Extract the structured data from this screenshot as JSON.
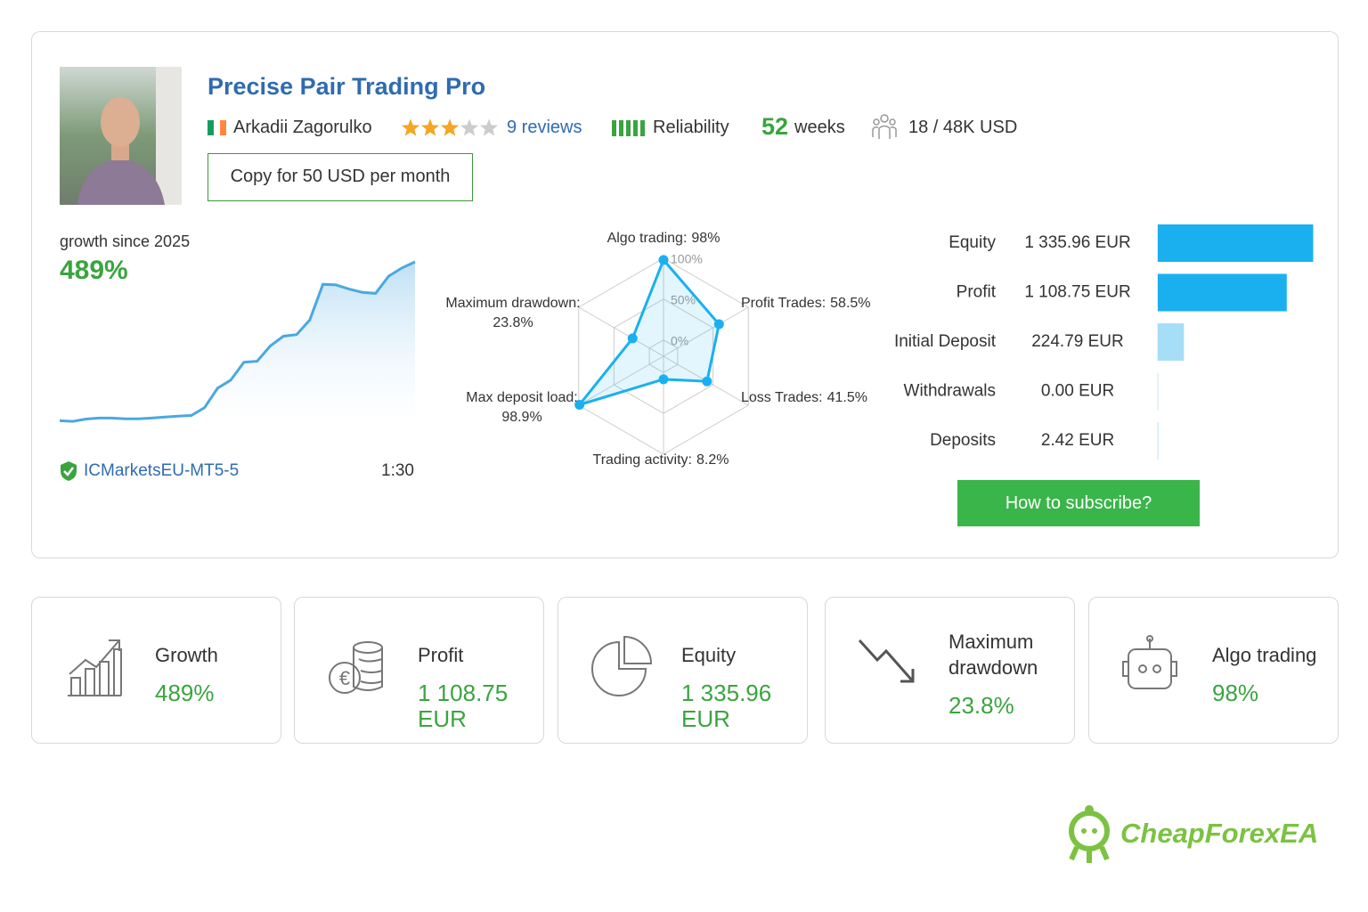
{
  "header": {
    "title": "Precise Pair Trading Pro",
    "author": "Arkadii Zagorulko",
    "rating": 3,
    "rating_max": 5,
    "reviews": "9 reviews",
    "reliability": "Reliability",
    "weeks": "52",
    "weeks_unit": "weeks",
    "subscribers": "18 / 48K USD",
    "copy_button": "Copy for 50 USD per month"
  },
  "growth": {
    "label": "growth since 2025",
    "value": "489%",
    "broker": "ICMarketsEU-MT5-5",
    "leverage": "1:30",
    "chart": {
      "type": "area",
      "color": "#4aa8e0",
      "ylim": [
        -10,
        500
      ],
      "values": [
        0,
        -2,
        5,
        8,
        8,
        6,
        6,
        8,
        11,
        14,
        16,
        40,
        100,
        125,
        180,
        183,
        230,
        260,
        265,
        310,
        420,
        418,
        405,
        395,
        392,
        445,
        470,
        489
      ]
    }
  },
  "radar": {
    "type": "radar",
    "color": "#1ab0ef",
    "categories": [
      "Algo trading:",
      "Profit Trades:",
      "Loss Trades:",
      "Trading activity:",
      "Max deposit load:",
      "Maximum drawdown:"
    ],
    "values": [
      98,
      58.5,
      41.5,
      8.2,
      98.9,
      23.8
    ],
    "value_labels": [
      "98%",
      "58.5%",
      "41.5%",
      "8.2%",
      "98.9%",
      "23.8%"
    ],
    "rlim": [
      -20,
      100
    ],
    "rticks": [
      {
        "value": 0,
        "label": "0%"
      },
      {
        "value": 50,
        "label": "50%"
      },
      {
        "value": 100,
        "label": "100%"
      }
    ]
  },
  "balance": {
    "type": "bar",
    "orientation": "horizontal",
    "categories": [
      "Equity",
      "Profit",
      "Initial Deposit",
      "Withdrawals",
      "Deposits"
    ],
    "values": [
      1335.96,
      1108.75,
      224.79,
      0,
      2.42
    ],
    "value_labels": [
      "1 335.96 EUR",
      "1 108.75 EUR",
      "224.79 EUR",
      "0.00 EUR",
      "2.42 EUR"
    ],
    "colors": [
      "#1ab0ef",
      "#1ab0ef",
      "#a6def8",
      "#a6def8",
      "#a6def8"
    ],
    "xlim": [
      0,
      1340
    ]
  },
  "subscribe_button": "How to subscribe?",
  "stats": [
    {
      "label": "Growth",
      "value": "489%"
    },
    {
      "label": "Profit",
      "value": "1 108.75 EUR"
    },
    {
      "label": "Equity",
      "value": "1 335.96 EUR"
    },
    {
      "label": "Maximum drawdown",
      "value": "23.8%"
    },
    {
      "label": "Algo trading",
      "value": "98%"
    }
  ],
  "logo": "CheapForexEA"
}
